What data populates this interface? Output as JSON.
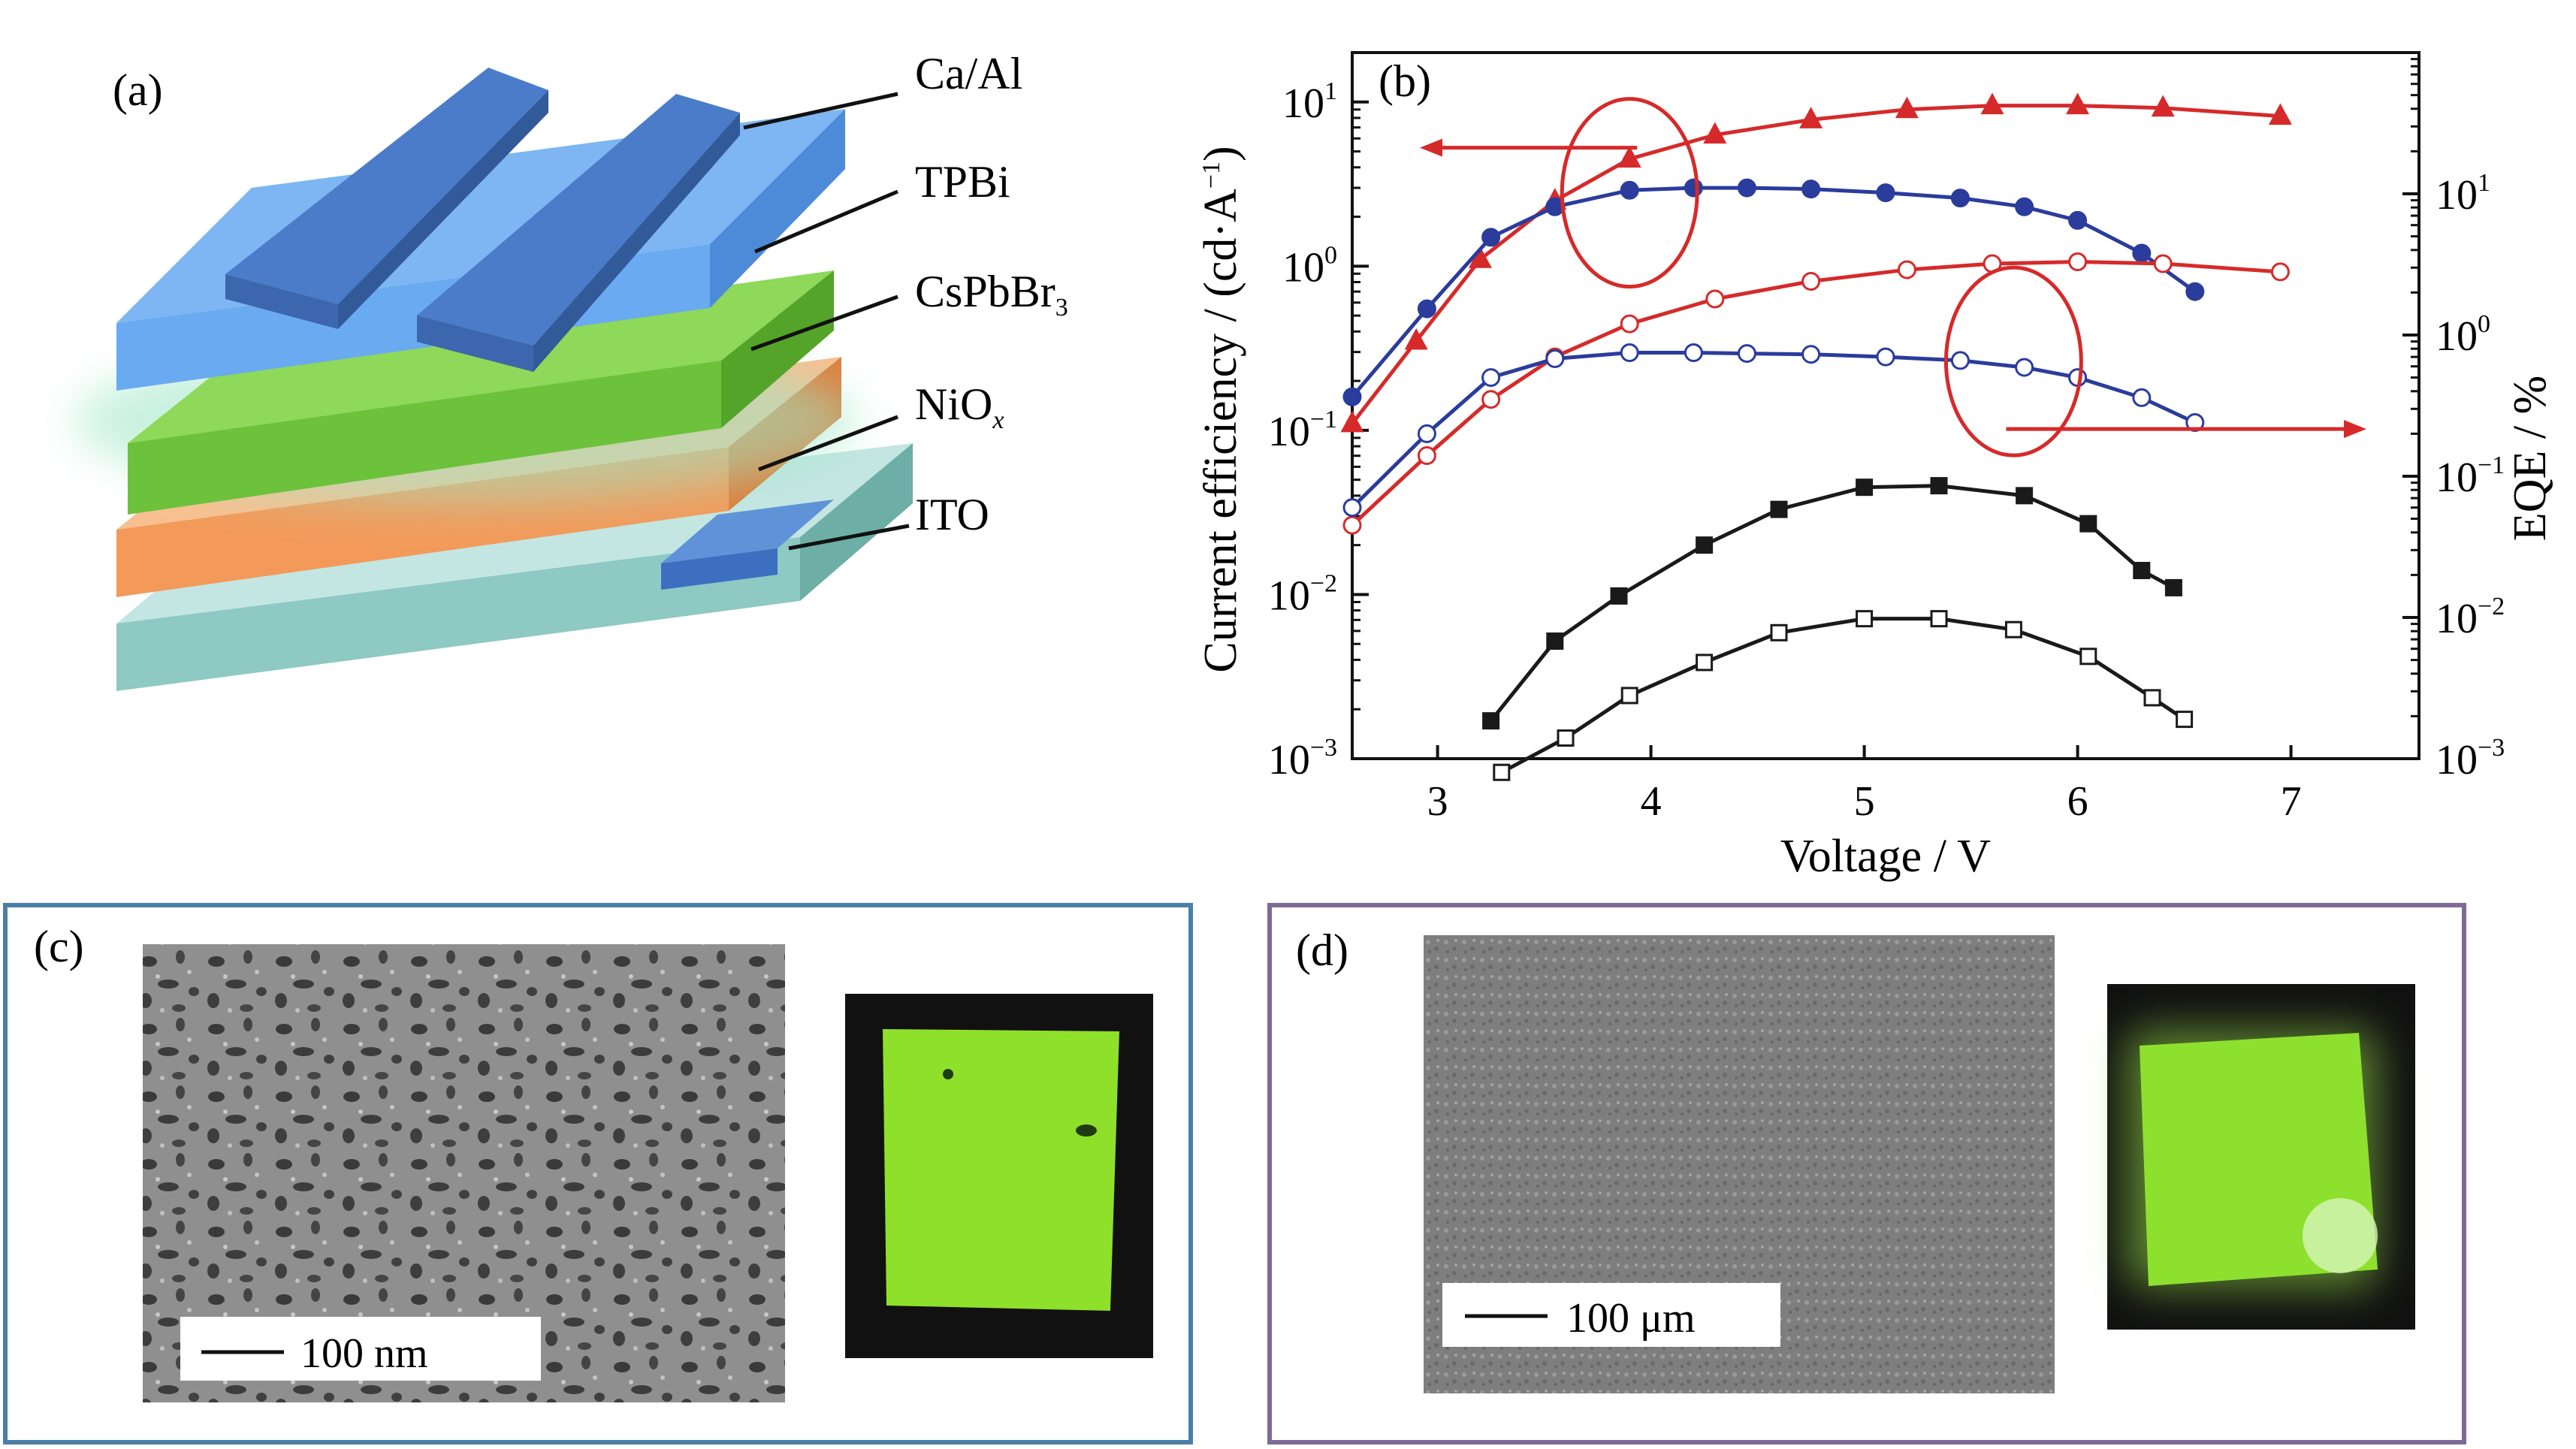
{
  "panels": {
    "a": {
      "label": "(a)",
      "layers": {
        "ca_al": "Ca/Al",
        "tpbi": "TPBi",
        "cspbbr3_main": "CsPbBr",
        "cspbbr3_sub": "3",
        "niox_main": "NiO",
        "niox_sub": "x",
        "ito": "ITO"
      },
      "colors": {
        "electrode": "#4a7cc9",
        "tpbi": "#6aaaf0",
        "perovskite": "#6cc23a",
        "niox": "#f39a5a",
        "ito": "#8ec9c3"
      }
    },
    "b": {
      "label": "(b)"
    },
    "c": {
      "label": "(c)",
      "scale": "100 nm",
      "frame_color": "#4a7fa8"
    },
    "d": {
      "label": "(d)",
      "scale": "100 μm",
      "frame_color": "#7e6a96"
    }
  },
  "chart_data": {
    "type": "line",
    "xlabel": "Voltage / V",
    "ylabel_left": "Current efficiency / (cd·A",
    "ylabel_left_sup": "−1",
    "ylabel_left_close": ")",
    "ylabel_right": "EQE / %",
    "xlim": [
      2.6,
      7.6
    ],
    "x_ticks": [
      3,
      4,
      5,
      6,
      7
    ],
    "ylim_left": [
      0.001,
      20
    ],
    "ylim_right": [
      0.001,
      100
    ],
    "y_scale": "log",
    "left_tick_labels": [
      {
        "base": "10",
        "exp": "1"
      },
      {
        "base": "10",
        "exp": "0"
      },
      {
        "base": "10",
        "exp": "−1"
      },
      {
        "base": "10",
        "exp": "−2"
      },
      {
        "base": "10",
        "exp": "−3"
      }
    ],
    "right_tick_labels": [
      {
        "base": "10",
        "exp": "1"
      },
      {
        "base": "10",
        "exp": "0"
      },
      {
        "base": "10",
        "exp": "−1"
      },
      {
        "base": "10",
        "exp": "−2"
      },
      {
        "base": "10",
        "exp": "−3"
      }
    ],
    "series": [
      {
        "axis": "left",
        "color": "#d62a2a",
        "marker": "triangle",
        "filled": true,
        "x": [
          2.6,
          2.9,
          3.2,
          3.55,
          3.9,
          4.3,
          4.75,
          5.2,
          5.6,
          6.0,
          6.4,
          6.95
        ],
        "y": [
          0.11,
          0.35,
          1.1,
          2.5,
          4.5,
          6.3,
          7.8,
          9.0,
          9.5,
          9.5,
          9.2,
          8.2
        ]
      },
      {
        "axis": "left",
        "color": "#2a3c9c",
        "marker": "circle",
        "filled": true,
        "x": [
          2.6,
          2.95,
          3.25,
          3.55,
          3.9,
          4.2,
          4.45,
          4.75,
          5.1,
          5.45,
          5.75,
          6.0,
          6.3,
          6.55
        ],
        "y": [
          0.16,
          0.55,
          1.5,
          2.3,
          2.9,
          3.0,
          3.0,
          2.95,
          2.8,
          2.6,
          2.3,
          1.9,
          1.2,
          0.7
        ]
      },
      {
        "axis": "right",
        "color": "#d62a2a",
        "marker": "circle",
        "filled": false,
        "x": [
          2.6,
          2.95,
          3.25,
          3.55,
          3.9,
          4.3,
          4.75,
          5.2,
          5.6,
          6.0,
          6.4,
          6.95
        ],
        "y": [
          0.045,
          0.14,
          0.35,
          0.7,
          1.2,
          1.8,
          2.4,
          2.9,
          3.2,
          3.3,
          3.2,
          2.8
        ]
      },
      {
        "axis": "right",
        "color": "#2a3c9c",
        "marker": "circle",
        "filled": false,
        "x": [
          2.6,
          2.95,
          3.25,
          3.55,
          3.9,
          4.2,
          4.45,
          4.75,
          5.1,
          5.45,
          5.75,
          6.0,
          6.3,
          6.55
        ],
        "y": [
          0.06,
          0.2,
          0.5,
          0.68,
          0.75,
          0.75,
          0.74,
          0.73,
          0.7,
          0.66,
          0.59,
          0.5,
          0.36,
          0.24
        ]
      },
      {
        "axis": "left",
        "color": "#1a1a1a",
        "marker": "square",
        "filled": true,
        "x": [
          3.25,
          3.55,
          3.85,
          4.25,
          4.6,
          5.0,
          5.35,
          5.75,
          6.05,
          6.3,
          6.45
        ],
        "y": [
          0.0017,
          0.0052,
          0.0098,
          0.02,
          0.033,
          0.045,
          0.046,
          0.04,
          0.027,
          0.014,
          0.011
        ]
      },
      {
        "axis": "right",
        "color": "#1a1a1a",
        "marker": "square",
        "filled": false,
        "x": [
          3.3,
          3.6,
          3.9,
          4.25,
          4.6,
          5.0,
          5.35,
          5.7,
          6.05,
          6.35,
          6.5
        ],
        "y": [
          0.0008,
          0.0014,
          0.0028,
          0.0048,
          0.0078,
          0.0098,
          0.0098,
          0.0082,
          0.0053,
          0.0027,
          0.0019
        ]
      }
    ],
    "annotations": [
      {
        "kind": "ellipse-arrow",
        "axis": "left",
        "points_to": "left",
        "color": "#d62a2a",
        "x": 3.9,
        "y": 2.8
      },
      {
        "kind": "ellipse-arrow",
        "axis": "right",
        "points_to": "right",
        "color": "#d62a2a",
        "x": 5.7,
        "y": 0.65
      }
    ]
  }
}
